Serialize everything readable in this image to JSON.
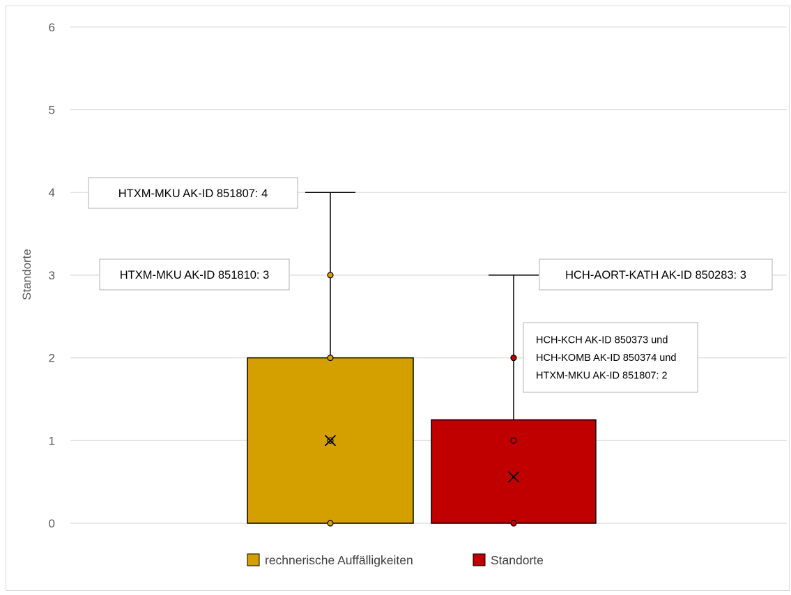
{
  "chart_data": {
    "type": "box",
    "ylabel": "Standorte",
    "ylim": [
      0,
      6
    ],
    "yticks": [
      "0",
      "1",
      "2",
      "3",
      "4",
      "5",
      "6"
    ],
    "grid": true,
    "legend_position": "bottom",
    "series": [
      {
        "name": "rechnerische Auffälligkeiten",
        "color": "#D4A000",
        "q1": 0,
        "q3": 2,
        "median": 1,
        "mean": 1,
        "whisker_low": 0,
        "whisker_high": 4,
        "points": [
          0,
          1,
          2,
          3
        ]
      },
      {
        "name": "Standorte",
        "color": "#C00000",
        "q1": 0,
        "q3": 1.25,
        "median": 0,
        "mean": 0.56,
        "whisker_low": 0,
        "whisker_high": 3,
        "points": [
          0,
          1,
          2
        ]
      }
    ],
    "annotations": [
      {
        "text": "HTXM-MKU AK-ID 851807: 4",
        "series": 0,
        "value": 4
      },
      {
        "text": "HTXM-MKU AK-ID 851810: 3",
        "series": 0,
        "value": 3
      },
      {
        "text": "HCH-AORT-KATH AK-ID 850283: 3",
        "series": 1,
        "value": 3
      },
      {
        "text": [
          "HCH-KCH AK-ID 850373 und",
          "HCH-KOMB AK-ID 850374 und",
          "HTXM-MKU AK-ID 851807: 2"
        ],
        "series": 1,
        "value": 2
      }
    ]
  }
}
